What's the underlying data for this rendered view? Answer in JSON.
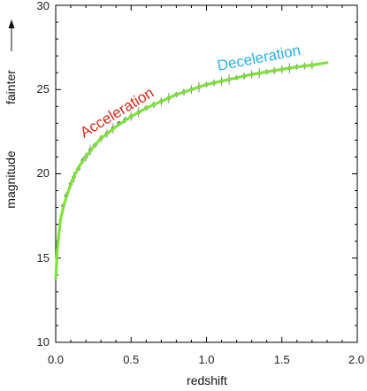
{
  "chart_data": {
    "type": "scatter",
    "xlabel": "redshift",
    "ylabel": "magnitude",
    "ylabel_extra": "fainter",
    "xlim": [
      0.0,
      2.0
    ],
    "ylim": [
      10,
      30
    ],
    "xticks": [
      "0.0",
      "0.5",
      "1.0",
      "1.5",
      "2.0"
    ],
    "yticks": [
      "10",
      "15",
      "20",
      "25",
      "30"
    ],
    "grid": false,
    "annotations": [
      {
        "text": "Acceleration",
        "color": "#d42a1a",
        "x": 0.15,
        "y": 22.3
      },
      {
        "text": "Deceleration",
        "color": "#29b0e6",
        "x": 1.07,
        "y": 26.2
      }
    ],
    "series": [
      {
        "kind": "model-curve",
        "color": "#7fe23a",
        "x": [
          0.0,
          0.005,
          0.01,
          0.02,
          0.03,
          0.05,
          0.07,
          0.1,
          0.13,
          0.16,
          0.2,
          0.25,
          0.3,
          0.4,
          0.5,
          0.6,
          0.7,
          0.8,
          0.9,
          1.0,
          1.1,
          1.2,
          1.3,
          1.4,
          1.5,
          1.6,
          1.7,
          1.8
        ],
        "y": [
          13.8,
          14.5,
          15.5,
          16.3,
          17.2,
          18.0,
          18.6,
          19.4,
          20.0,
          20.5,
          21.0,
          21.6,
          22.1,
          22.8,
          23.4,
          23.9,
          24.3,
          24.7,
          25.0,
          25.3,
          25.5,
          25.7,
          25.9,
          26.05,
          26.2,
          26.35,
          26.45,
          26.6
        ]
      },
      {
        "kind": "observations",
        "color": "#8c8c8c",
        "x": [
          0.05,
          0.07,
          0.1,
          0.12,
          0.15,
          0.18,
          0.2,
          0.23,
          0.26,
          0.3,
          0.34,
          0.38,
          0.42,
          0.46,
          0.5,
          0.55,
          0.6,
          0.65,
          0.7,
          0.75,
          0.8,
          0.85,
          0.9,
          0.95,
          1.0,
          1.05,
          1.1,
          1.15,
          1.2,
          1.25,
          1.3,
          1.35,
          1.4,
          1.45,
          1.5,
          1.55,
          1.6,
          1.65,
          1.7
        ],
        "y": [
          18.1,
          18.7,
          19.4,
          19.8,
          20.3,
          20.8,
          21.0,
          21.4,
          21.7,
          22.1,
          22.4,
          22.7,
          23.0,
          23.2,
          23.4,
          23.65,
          23.9,
          24.1,
          24.3,
          24.5,
          24.7,
          24.85,
          25.0,
          25.15,
          25.3,
          25.4,
          25.5,
          25.6,
          25.7,
          25.8,
          25.9,
          25.97,
          26.05,
          26.12,
          26.2,
          26.27,
          26.35,
          26.4,
          26.45
        ]
      }
    ]
  }
}
